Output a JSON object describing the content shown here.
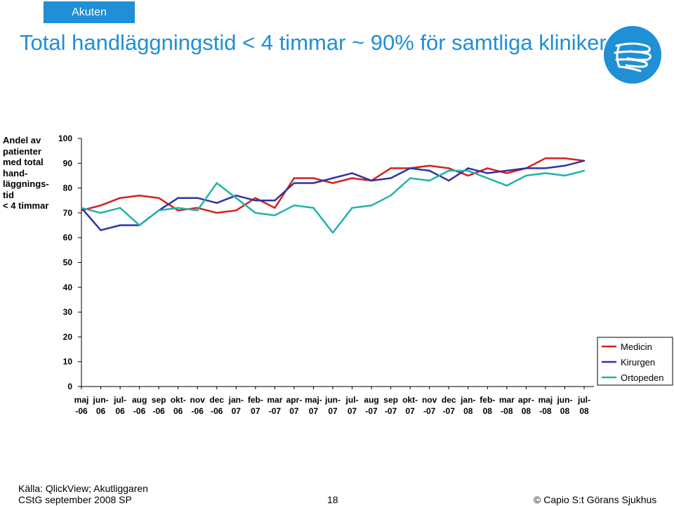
{
  "header": {
    "tag": "Akuten",
    "title": "Total handläggningstid < 4 timmar ~ 90% för samtliga kliniker"
  },
  "colors": {
    "accent": "#1f8fd6",
    "medicin": "#d42020",
    "kirurgen": "#2e35a0",
    "ortopeden": "#22b3a8"
  },
  "chart_data": {
    "type": "line",
    "ylabel": "Andel av\npatienter\nmed total\nhand-\nläggnings-\ntid\n< 4 timmar",
    "ylim": [
      0,
      100
    ],
    "yticks": [
      "0",
      "10",
      "20",
      "30",
      "40",
      "50",
      "60",
      "70",
      "80",
      "90",
      "100"
    ],
    "categories": [
      "maj-06",
      "jun-06",
      "jul-06",
      "aug-06",
      "sep-06",
      "okt-06",
      "nov-06",
      "dec-06",
      "jan-07",
      "feb-07",
      "mar-07",
      "apr-07",
      "maj-07",
      "jun-07",
      "jul-07",
      "aug-07",
      "sep-07",
      "okt-07",
      "nov-07",
      "dec-07",
      "jan-08",
      "feb-08",
      "mar-08",
      "apr-08",
      "maj-08",
      "jun-08",
      "jul-08"
    ],
    "xtick_lines": [
      [
        "maj",
        "-06"
      ],
      [
        "jun-",
        "06"
      ],
      [
        "jul-",
        "06"
      ],
      [
        "aug",
        "-06"
      ],
      [
        "sep",
        "-06"
      ],
      [
        "okt-",
        "06"
      ],
      [
        "nov",
        "-06"
      ],
      [
        "dec",
        "-06"
      ],
      [
        "jan-",
        "07"
      ],
      [
        "feb-",
        "07"
      ],
      [
        "mar",
        "-07"
      ],
      [
        "apr-",
        "07"
      ],
      [
        "maj-",
        "07"
      ],
      [
        "jun-",
        "07"
      ],
      [
        "jul-",
        "07"
      ],
      [
        "aug",
        "-07"
      ],
      [
        "sep",
        "-07"
      ],
      [
        "okt-",
        "07"
      ],
      [
        "nov",
        "-07"
      ],
      [
        "dec",
        "-07"
      ],
      [
        "jan-",
        "08"
      ],
      [
        "feb-",
        "08"
      ],
      [
        "mar",
        "-08"
      ],
      [
        "apr-",
        "08"
      ],
      [
        "maj",
        "-08"
      ],
      [
        "jun-",
        "08"
      ],
      [
        "jul-",
        "08"
      ]
    ],
    "series": [
      {
        "name": "Medicin",
        "values": [
          71,
          73,
          76,
          77,
          76,
          71,
          72,
          70,
          71,
          76,
          72,
          84,
          84,
          82,
          84,
          83,
          88,
          88,
          89,
          88,
          85,
          88,
          86,
          88,
          92,
          92,
          91
        ]
      },
      {
        "name": "Kirurgen",
        "values": [
          72,
          63,
          65,
          65,
          71,
          76,
          76,
          74,
          77,
          75,
          75,
          82,
          82,
          84,
          86,
          83,
          84,
          88,
          87,
          83,
          88,
          86,
          87,
          88,
          88,
          89,
          91
        ]
      },
      {
        "name": "Ortopeden",
        "values": [
          72,
          70,
          72,
          65,
          71,
          72,
          71,
          82,
          76,
          70,
          69,
          73,
          72,
          62,
          72,
          73,
          77,
          84,
          83,
          87,
          87,
          84,
          81,
          85,
          86,
          85,
          87
        ]
      }
    ],
    "legend_position": "right"
  },
  "footer": {
    "source": "Källa: QlickView; Akutliggaren",
    "date": "CStG september 2008 SP",
    "page": "18",
    "copyright": "© Capio S:t Görans Sjukhus"
  }
}
